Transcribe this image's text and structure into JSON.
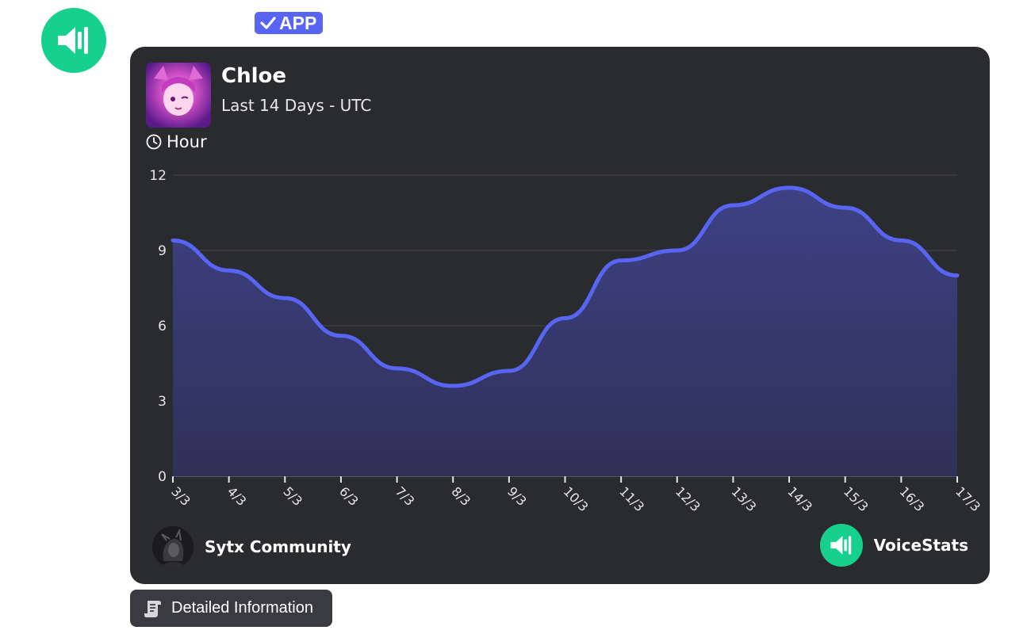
{
  "message": {
    "bot_avatar_icon": "speaker-icon",
    "badge_label": "APP",
    "badge_icon": "checkmark-icon"
  },
  "card": {
    "user_name": "Chloe",
    "period": "Last 14 Days - UTC",
    "metric_icon": "clock-icon",
    "metric_label": "Hour",
    "server_name": "Sytx Community",
    "brand_name": "VoiceStats",
    "brand_icon": "speaker-icon"
  },
  "button": {
    "label": "Detailed Information",
    "icon": "scroll-icon"
  },
  "colors": {
    "line": "#5865f2",
    "card_bg": "#2a2b2f",
    "brand_green": "#16d08e",
    "badge": "#5865f2"
  },
  "chart_data": {
    "type": "area",
    "categories": [
      "3/3",
      "4/3",
      "5/3",
      "6/3",
      "7/3",
      "8/3",
      "9/3",
      "10/3",
      "11/3",
      "12/3",
      "13/3",
      "14/3",
      "15/3",
      "16/3",
      "17/3"
    ],
    "values": [
      9.4,
      8.2,
      7.1,
      5.6,
      4.3,
      3.6,
      4.2,
      6.3,
      8.6,
      9.0,
      10.8,
      11.5,
      10.7,
      9.4,
      8.0
    ],
    "title": "",
    "xlabel": "",
    "ylabel": "",
    "ylim": [
      0,
      12
    ],
    "yticks": [
      0,
      3,
      6,
      9,
      12
    ],
    "grid": true,
    "legend": "none"
  }
}
